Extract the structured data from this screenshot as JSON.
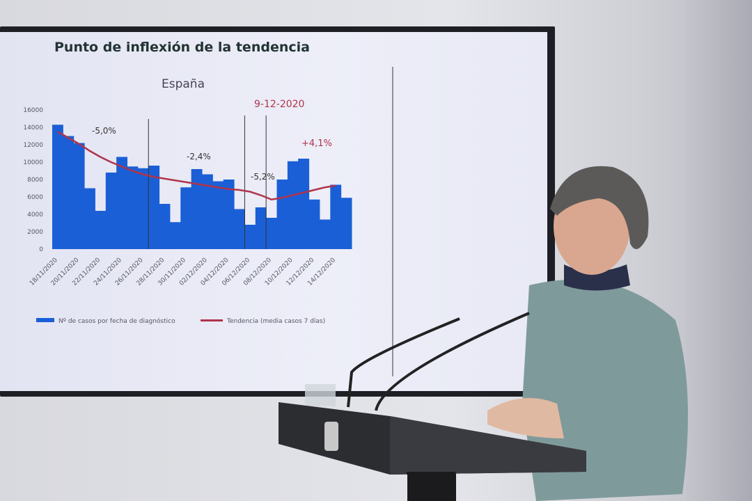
{
  "slide": {
    "title": "Punto de inflexión de la tendencia",
    "annotations": {
      "date_marker": "9-12-2020",
      "p1": "-5,0%",
      "p2": "-2,4%",
      "p3": "-5,2%",
      "p4": "+4,1%"
    }
  },
  "chart_data": {
    "type": "bar",
    "title": "España",
    "xlabel": "",
    "ylabel": "",
    "ylim": [
      0,
      16000
    ],
    "yticks": [
      0,
      2000,
      4000,
      6000,
      8000,
      10000,
      12000,
      14000,
      16000
    ],
    "xtick_labels": [
      "18/11/2020",
      "20/11/2020",
      "22/11/2020",
      "24/11/2020",
      "26/11/2020",
      "28/11/2020",
      "30/11/2020",
      "02/12/2020",
      "04/12/2020",
      "06/12/2020",
      "08/12/2020",
      "10/12/2020",
      "12/12/2020",
      "14/12/2020"
    ],
    "series": [
      {
        "name": "Nº de casos por fecha de diagnóstico",
        "type": "bar",
        "color": "#1a5fd6",
        "values": [
          14300,
          13000,
          12200,
          7000,
          4400,
          8800,
          10600,
          9500,
          9300,
          9600,
          5200,
          3100,
          7100,
          9200,
          8600,
          7800,
          8000,
          4600,
          2800,
          4800,
          3600,
          8000,
          10100,
          10400,
          5700,
          3400,
          7400,
          5900
        ]
      },
      {
        "name": "Tendencia (media casos 7 días)",
        "type": "line",
        "color": "#b0344a",
        "values": [
          13500,
          12800,
          12100,
          11300,
          10600,
          10000,
          9500,
          9000,
          8600,
          8300,
          8100,
          7900,
          7700,
          7500,
          7300,
          7100,
          6900,
          6800,
          6600,
          6200,
          5700,
          5900,
          6200,
          6500,
          6800,
          7100,
          7300,
          null
        ]
      }
    ],
    "vertical_lines_after_index": [
      8,
      17,
      19
    ],
    "legend_placement": "bottom"
  }
}
